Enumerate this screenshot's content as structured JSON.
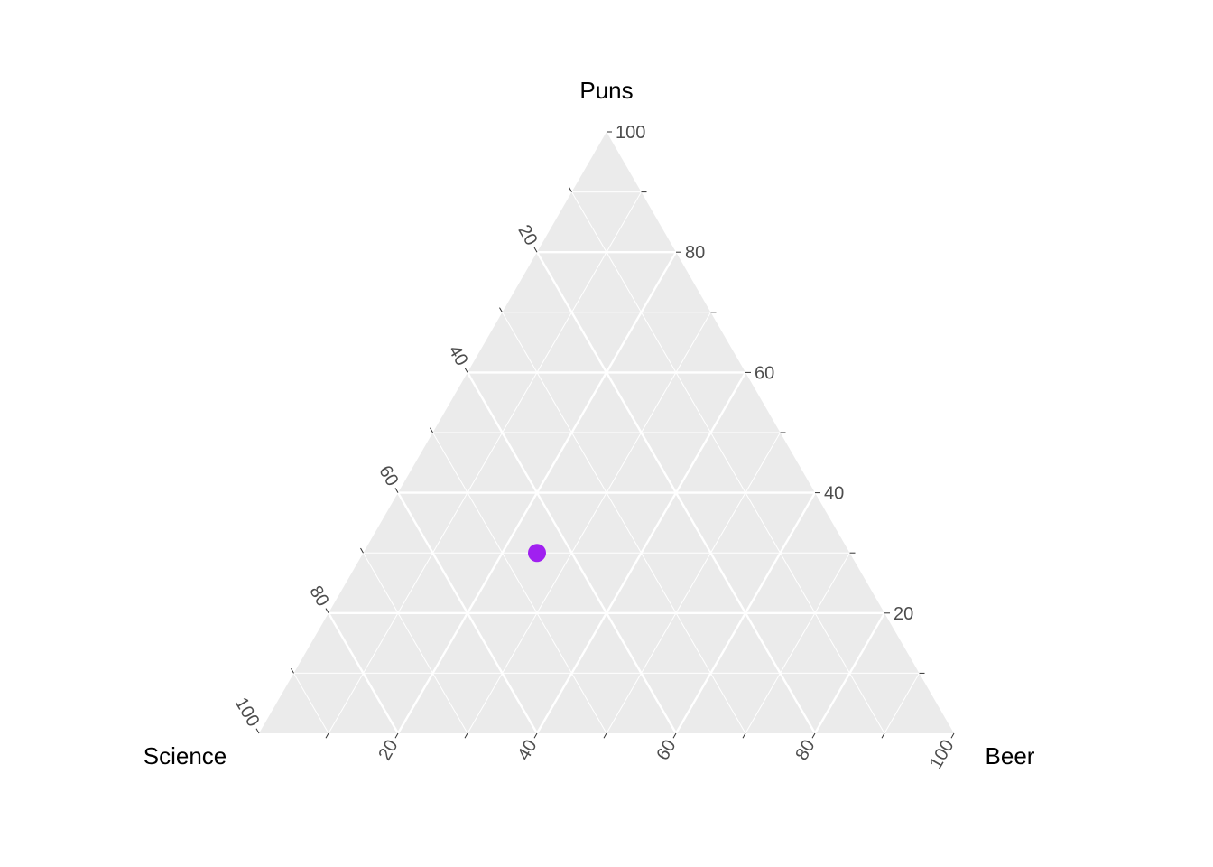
{
  "chart_data": {
    "type": "scatter",
    "subtype": "ternary",
    "axes": {
      "top": {
        "label": "Puns",
        "ticks": [
          "20",
          "40",
          "60",
          "80",
          "100"
        ]
      },
      "left": {
        "label": "Science",
        "ticks": [
          "20",
          "40",
          "60",
          "80",
          "100"
        ]
      },
      "right": {
        "label": "Beer",
        "ticks": [
          "20",
          "40",
          "60",
          "80",
          "100"
        ]
      }
    },
    "range": [
      0,
      100
    ],
    "major_step": 20,
    "minor_step": 10,
    "grid": true,
    "legend": "none",
    "points": [
      {
        "Puns": 30,
        "Science": 45,
        "Beer": 25
      }
    ],
    "colors": {
      "panel": "#ebebeb",
      "grid": "#ffffff",
      "point": "#a020f0",
      "tick_text": "#4d4d4d",
      "title_text": "#000000"
    }
  }
}
